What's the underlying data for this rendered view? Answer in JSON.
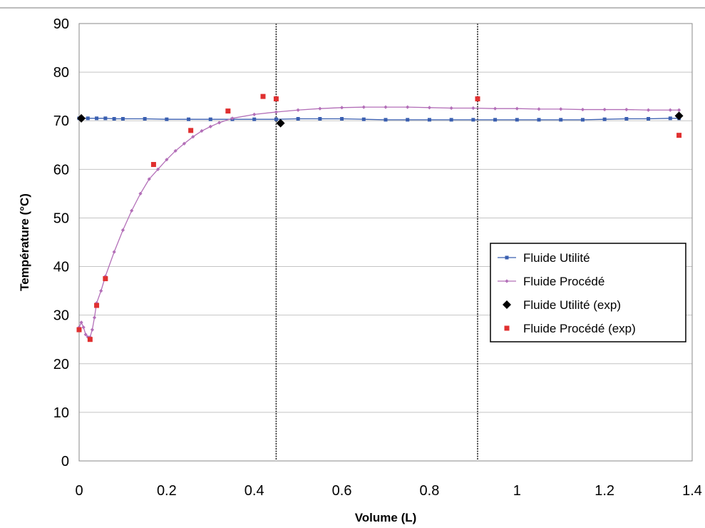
{
  "chart_data": {
    "type": "scatter",
    "xlabel": "Volume (L)",
    "ylabel": "Température (°C)",
    "xlim": [
      0,
      1.4
    ],
    "ylim": [
      0,
      90
    ],
    "x_ticks": [
      0,
      0.2,
      0.4,
      0.6,
      0.8,
      1,
      1.2,
      1.4
    ],
    "x_tick_labels": [
      "0",
      "0.2",
      "0.4",
      "0.6",
      "0.8",
      "1",
      "1.2",
      "1.4"
    ],
    "y_ticks": [
      0,
      10,
      20,
      30,
      40,
      50,
      60,
      70,
      80,
      90
    ],
    "y_tick_labels": [
      "0",
      "10",
      "20",
      "30",
      "40",
      "50",
      "60",
      "70",
      "80",
      "90"
    ],
    "grid": "horizontal",
    "vertical_markers_x": [
      0.45,
      0.91
    ],
    "legend_position": "right-middle",
    "series": [
      {
        "name": "Fluide Utilité",
        "style": "line+square",
        "color": "#3a5fb0",
        "x": [
          0,
          0.02,
          0.04,
          0.06,
          0.08,
          0.1,
          0.15,
          0.2,
          0.25,
          0.3,
          0.35,
          0.4,
          0.45,
          0.5,
          0.55,
          0.6,
          0.65,
          0.7,
          0.75,
          0.8,
          0.85,
          0.9,
          0.95,
          1.0,
          1.05,
          1.1,
          1.15,
          1.2,
          1.25,
          1.3,
          1.35,
          1.37
        ],
        "y": [
          70.5,
          70.5,
          70.5,
          70.5,
          70.4,
          70.4,
          70.4,
          70.3,
          70.3,
          70.3,
          70.3,
          70.3,
          70.3,
          70.4,
          70.4,
          70.4,
          70.3,
          70.2,
          70.2,
          70.2,
          70.2,
          70.2,
          70.2,
          70.2,
          70.2,
          70.2,
          70.2,
          70.3,
          70.4,
          70.4,
          70.5,
          70.5
        ]
      },
      {
        "name": "Fluide Procédé",
        "style": "line+diamond",
        "color": "#b36fb8",
        "x": [
          0,
          0.005,
          0.01,
          0.015,
          0.02,
          0.025,
          0.03,
          0.035,
          0.04,
          0.05,
          0.06,
          0.08,
          0.1,
          0.12,
          0.14,
          0.16,
          0.18,
          0.2,
          0.22,
          0.24,
          0.26,
          0.28,
          0.3,
          0.32,
          0.35,
          0.4,
          0.45,
          0.5,
          0.55,
          0.6,
          0.65,
          0.7,
          0.75,
          0.8,
          0.85,
          0.9,
          0.95,
          1.0,
          1.05,
          1.1,
          1.15,
          1.2,
          1.25,
          1.3,
          1.35,
          1.37
        ],
        "y": [
          27.5,
          28.5,
          27.5,
          26,
          25.5,
          25.5,
          27,
          29.5,
          32.5,
          35,
          38,
          43,
          47.5,
          51.5,
          55,
          58,
          60,
          62,
          63.8,
          65.3,
          66.7,
          67.9,
          68.8,
          69.6,
          70.5,
          71.3,
          71.8,
          72.2,
          72.5,
          72.7,
          72.8,
          72.8,
          72.8,
          72.7,
          72.6,
          72.6,
          72.5,
          72.5,
          72.4,
          72.4,
          72.3,
          72.3,
          72.3,
          72.2,
          72.2,
          72.2
        ]
      },
      {
        "name": "Fluide Utilité (exp)",
        "style": "marker-diamond",
        "color": "#000000",
        "x": [
          0.005,
          0.46,
          1.37
        ],
        "y": [
          70.5,
          69.5,
          71
        ]
      },
      {
        "name": "Fluide Procédé (exp)",
        "style": "marker-square",
        "color": "#e03030",
        "x": [
          0,
          0.025,
          0.04,
          0.06,
          0.17,
          0.255,
          0.34,
          0.42,
          0.45,
          0.91,
          1.37
        ],
        "y": [
          27,
          25,
          32,
          37.5,
          61,
          68,
          72,
          75,
          74.5,
          74.5,
          67
        ]
      }
    ]
  }
}
